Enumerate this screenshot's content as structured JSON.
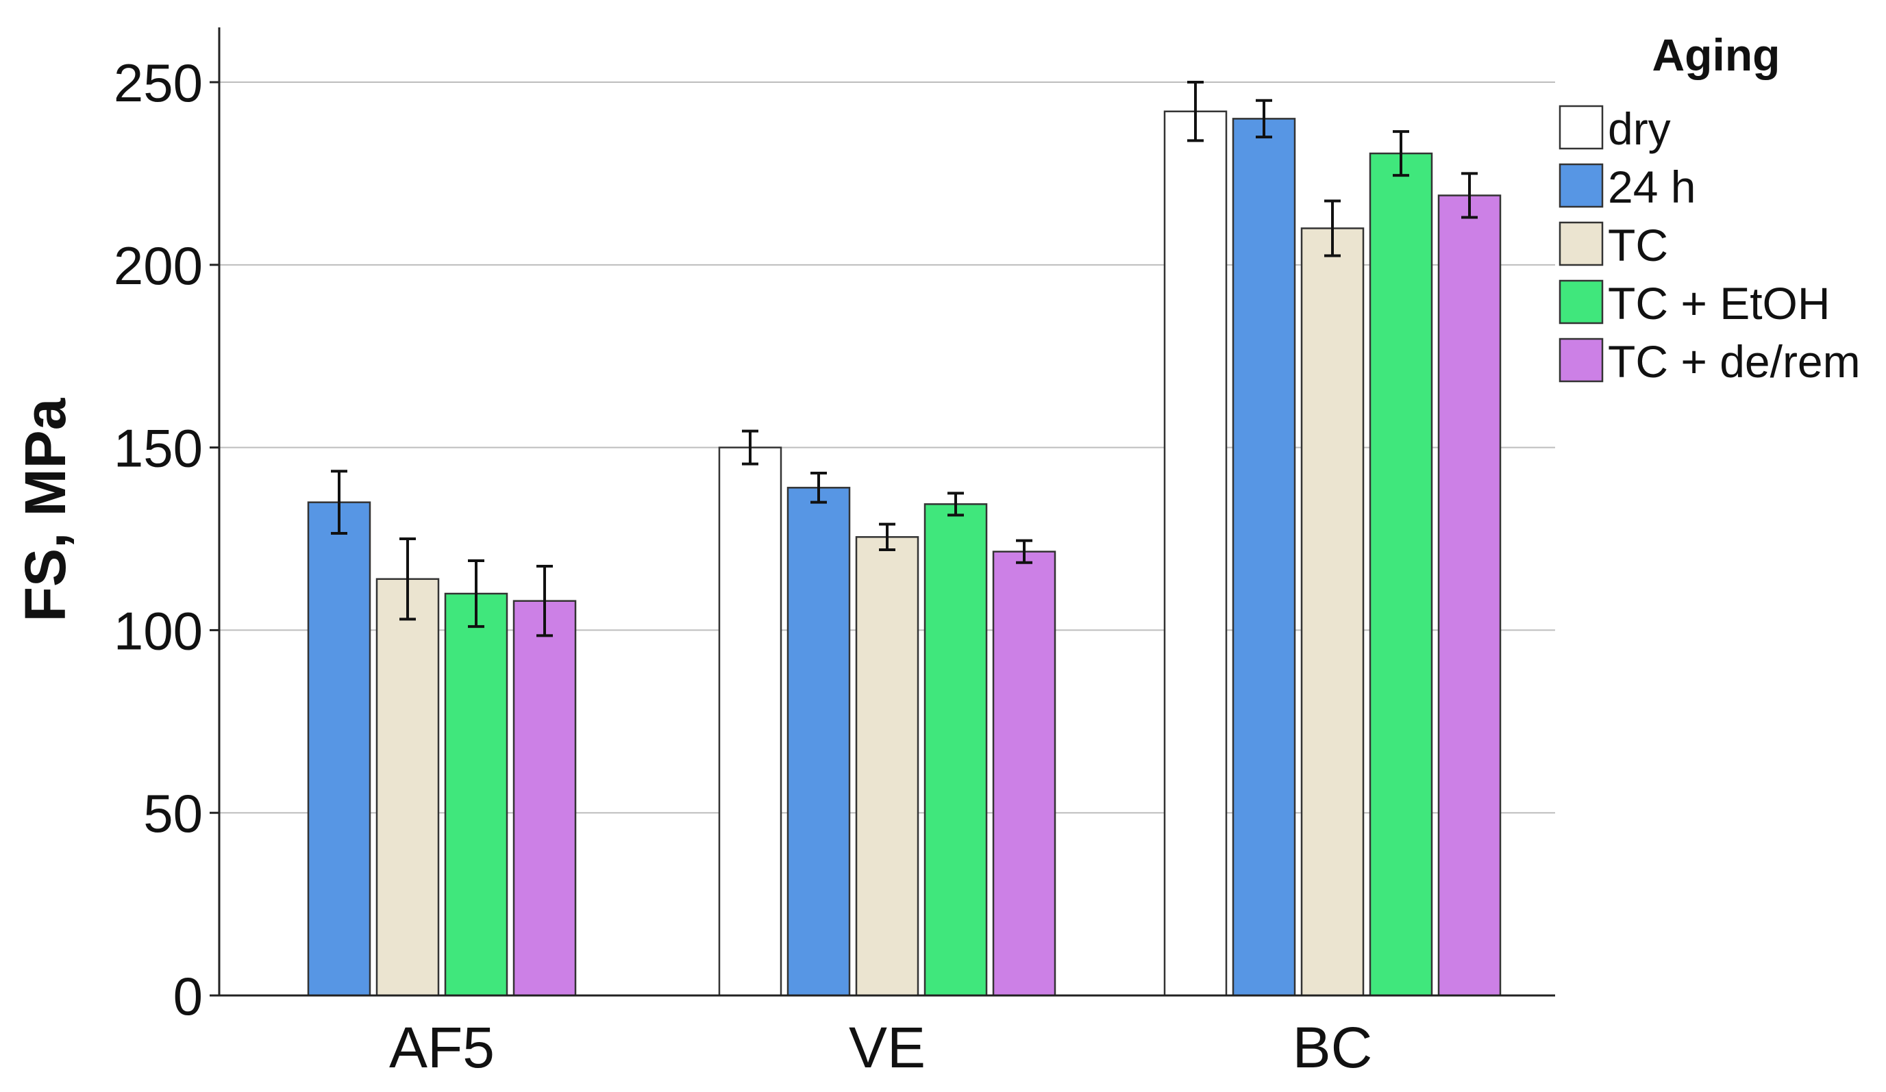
{
  "chart_data": {
    "type": "bar",
    "title": "",
    "xlabel": "",
    "ylabel": "FS, MPa",
    "ylim": [
      0,
      265
    ],
    "yticks": [
      0,
      50,
      100,
      150,
      200,
      250
    ],
    "grid": true,
    "legend": {
      "title": "Aging",
      "position": "top-right"
    },
    "categories": [
      "AF5",
      "VE",
      "BC"
    ],
    "series": [
      {
        "name": "dry",
        "color": "#ffffff",
        "values": [
          null,
          150,
          242
        ],
        "errors": [
          null,
          4.5,
          8
        ]
      },
      {
        "name": "24 h",
        "color": "#5796e4",
        "values": [
          135,
          139,
          240
        ],
        "errors": [
          8.5,
          4,
          5
        ]
      },
      {
        "name": "TC",
        "color": "#ebe4d0",
        "values": [
          114,
          125.5,
          210
        ],
        "errors": [
          11,
          3.5,
          7.5
        ]
      },
      {
        "name": "TC + EtOH",
        "color": "#40e77c",
        "values": [
          110,
          134.5,
          230.5
        ],
        "errors": [
          9,
          3,
          6
        ]
      },
      {
        "name": "TC + de/rem",
        "color": "#cc80e6",
        "values": [
          108,
          121.5,
          219
        ],
        "errors": [
          9.5,
          3,
          6
        ]
      }
    ]
  }
}
